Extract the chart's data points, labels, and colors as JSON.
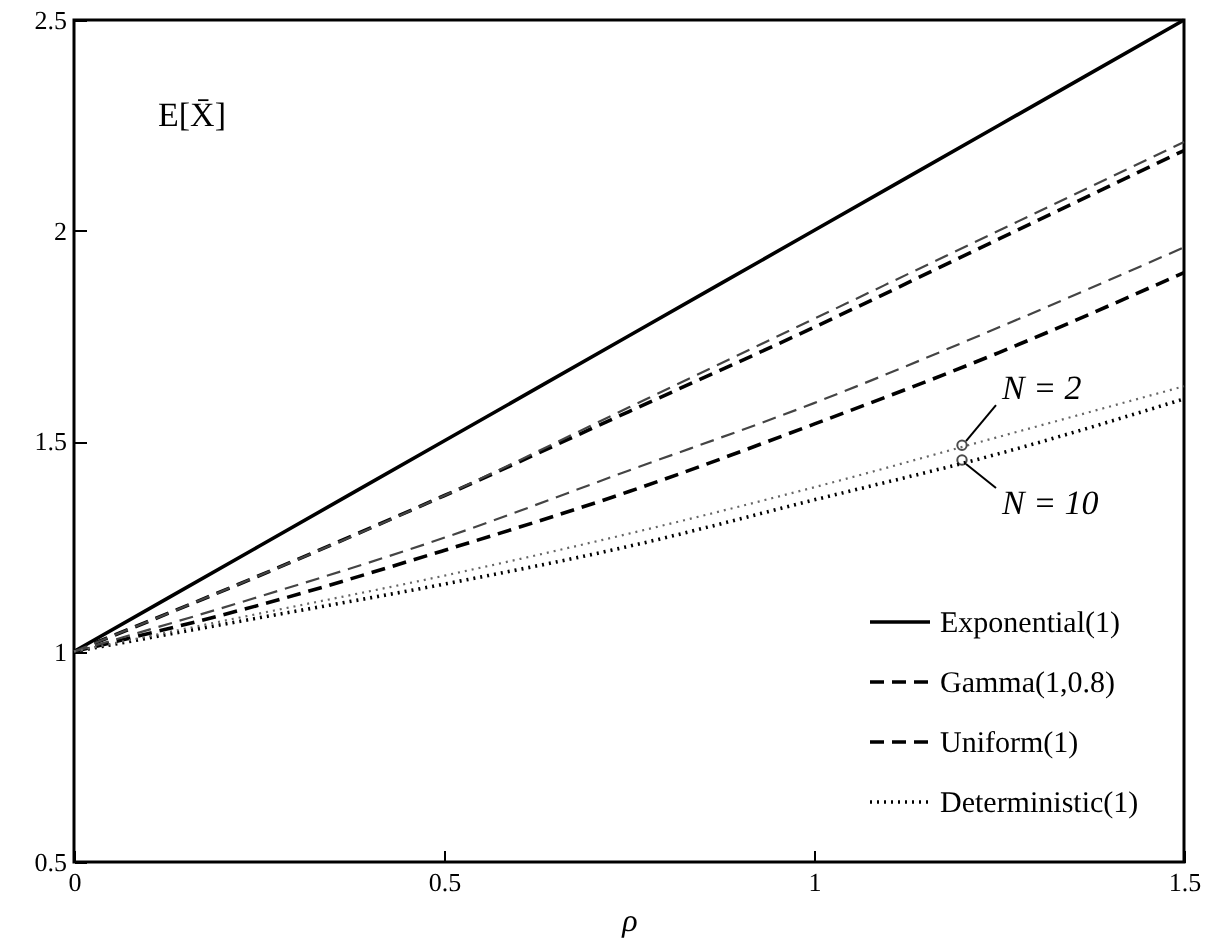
{
  "chart_data": {
    "type": "line",
    "xlabel": "ρ",
    "annotations": [
      "E[X̄]",
      {
        "text": "N = 2",
        "x": 1.2,
        "y": 1.49
      },
      {
        "text": "N = 10",
        "x": 1.2,
        "y": 1.455
      }
    ],
    "x": [
      0,
      0.25,
      0.5,
      0.75,
      1,
      1.25,
      1.5
    ],
    "series": [
      {
        "name": "Exponential(1)",
        "color": "#000000",
        "line_style": "solid",
        "values": [
          1,
          1.25,
          1.5,
          1.75,
          2,
          2.25,
          2.5
        ]
      },
      {
        "name": "Gamma(1,0.8)",
        "color": "#000000",
        "line_style": "dashed",
        "values": [
          1,
          1.18,
          1.37,
          1.57,
          1.77,
          1.98,
          2.19
        ]
      },
      {
        "color": "#444444",
        "line_style": "dashed",
        "values": [
          1,
          1.18,
          1.37,
          1.58,
          1.79,
          2.0,
          2.21
        ]
      },
      {
        "name": "Uniform(1)",
        "color": "#000000",
        "line_style": "dashed",
        "values": [
          1,
          1.11,
          1.24,
          1.38,
          1.54,
          1.71,
          1.9
        ]
      },
      {
        "color": "#444444",
        "line_style": "dashed",
        "values": [
          1,
          1.13,
          1.27,
          1.43,
          1.59,
          1.77,
          1.96
        ]
      },
      {
        "name": "Deterministic(1)",
        "color": "#000000",
        "line_style": "dotted",
        "values": [
          1,
          1.08,
          1.16,
          1.25,
          1.36,
          1.47,
          1.6
        ]
      },
      {
        "color": "#666666",
        "line_style": "dotted",
        "values": [
          1,
          1.09,
          1.18,
          1.28,
          1.39,
          1.51,
          1.63
        ]
      }
    ],
    "xlim": [
      0,
      1.5
    ],
    "xticks": [
      0,
      0.5,
      1,
      1.5
    ],
    "ylim": [
      0.5,
      2.5
    ],
    "yticks": [
      0.5,
      1,
      1.5,
      2,
      2.5
    ],
    "grid": false,
    "legend": "bottom right"
  }
}
